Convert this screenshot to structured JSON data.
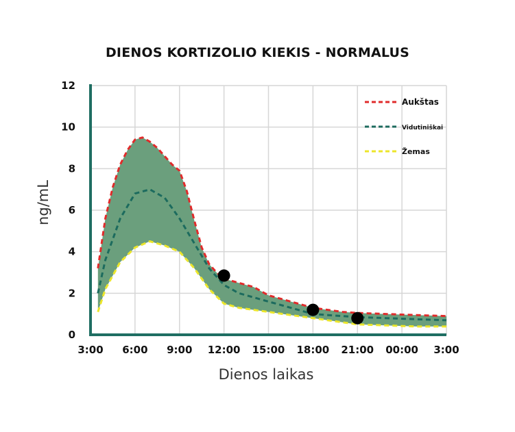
{
  "chart_data": {
    "type": "area",
    "title": "DIENOS KORTIZOLIO KIEKIS - NORMALUS",
    "xlabel": "Dienos laikas",
    "ylabel": "ng/mL",
    "x_categories": [
      "3:00",
      "6:00",
      "9:00",
      "12:00",
      "15:00",
      "18:00",
      "21:00",
      "00:00",
      "3:00"
    ],
    "xlim": [
      0,
      24
    ],
    "ylim": [
      0,
      12
    ],
    "y_ticks": [
      "0",
      "2",
      "4",
      "6",
      "8",
      "10",
      "12"
    ],
    "grid": true,
    "legend_position": "top-right",
    "series": [
      {
        "name": "Aukštas",
        "style": "dashed",
        "color": "#e02b2b",
        "x": [
          0.5,
          1.0,
          1.5,
          2.0,
          2.5,
          3.0,
          3.5,
          4.0,
          4.5,
          5.0,
          5.5,
          6.0,
          6.5,
          7.0,
          7.5,
          8.0,
          8.5,
          9.0,
          10.0,
          11.0,
          12.0,
          13.0,
          14.0,
          15.0,
          16.0,
          17.0,
          18.0,
          20.0,
          22.0,
          24.0
        ],
        "values": [
          3.2,
          5.6,
          7.1,
          8.2,
          8.9,
          9.4,
          9.5,
          9.3,
          9.0,
          8.6,
          8.2,
          7.9,
          6.9,
          5.5,
          4.2,
          3.4,
          3.0,
          2.7,
          2.5,
          2.3,
          1.9,
          1.7,
          1.5,
          1.3,
          1.2,
          1.1,
          1.05,
          1.0,
          0.95,
          0.9
        ]
      },
      {
        "name": "Vidutiniškai",
        "style": "dashed",
        "color": "#1c6b5e",
        "x": [
          0.5,
          1.0,
          2.0,
          3.0,
          4.0,
          5.0,
          6.0,
          7.0,
          8.0,
          9.0,
          10.0,
          11.0,
          12.0,
          13.0,
          14.0,
          15.0,
          16.0,
          17.0,
          18.0,
          20.0,
          22.0,
          24.0
        ],
        "values": [
          2.0,
          3.6,
          5.6,
          6.8,
          7.0,
          6.6,
          5.6,
          4.4,
          3.2,
          2.4,
          2.0,
          1.8,
          1.6,
          1.4,
          1.2,
          1.0,
          0.95,
          0.9,
          0.85,
          0.8,
          0.75,
          0.7
        ]
      },
      {
        "name": "Žemas",
        "style": "dashed",
        "color": "#ece62a",
        "x": [
          0.5,
          1.0,
          2.0,
          3.0,
          4.0,
          5.0,
          6.0,
          7.0,
          8.0,
          9.0,
          10.0,
          11.0,
          12.0,
          13.0,
          14.0,
          15.0,
          16.0,
          17.0,
          18.0,
          20.0,
          22.0,
          24.0
        ],
        "values": [
          1.1,
          2.2,
          3.5,
          4.2,
          4.5,
          4.3,
          4.0,
          3.2,
          2.2,
          1.5,
          1.3,
          1.2,
          1.1,
          1.0,
          0.9,
          0.8,
          0.7,
          0.6,
          0.5,
          0.45,
          0.4,
          0.4
        ]
      },
      {
        "name": "",
        "type": "scatter",
        "color": "#000000",
        "x": [
          9.0,
          15.0,
          18.0
        ],
        "values": [
          2.85,
          1.2,
          0.8
        ]
      }
    ],
    "band_color": "#6b9f7d",
    "axis_color": "#1f6e62",
    "grid_color": "#d6d6d6"
  }
}
